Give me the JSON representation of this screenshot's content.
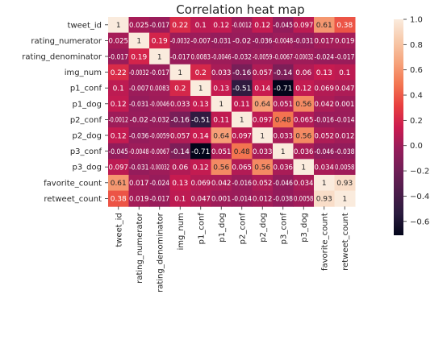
{
  "chart_data": {
    "type": "heatmap",
    "title": "Correlation heat map",
    "variables": [
      "tweet_id",
      "rating_numerator",
      "rating_denominator",
      "img_num",
      "p1_conf",
      "p1_dog",
      "p2_conf",
      "p2_dog",
      "p3_conf",
      "p3_dog",
      "favorite_count",
      "retweet_count"
    ],
    "cell_labels": [
      [
        "1",
        "0.025",
        "-0.017",
        "0.22",
        "0.1",
        "0.12",
        "-0.0012",
        "0.12",
        "-0.045",
        "0.097",
        "0.61",
        "0.38"
      ],
      [
        "0.025",
        "1",
        "0.19",
        "-0.0032",
        "-0.007",
        "-0.031",
        "-0.02",
        "-0.036",
        "-0.0048",
        "-0.031",
        "0.017",
        "0.019"
      ],
      [
        "-0.017",
        "0.19",
        "1",
        "-0.017",
        "0.0083",
        "-0.0046",
        "-0.032",
        "-0.0059",
        "-0.0067",
        "-0.00032",
        "-0.024",
        "-0.017"
      ],
      [
        "0.22",
        "-0.0032",
        "-0.017",
        "1",
        "0.2",
        "0.033",
        "-0.16",
        "0.057",
        "-0.14",
        "0.06",
        "0.13",
        "0.1"
      ],
      [
        "0.1",
        "-0.007",
        "0.0083",
        "0.2",
        "1",
        "0.13",
        "-0.51",
        "0.14",
        "-0.71",
        "0.12",
        "0.069",
        "0.047"
      ],
      [
        "0.12",
        "-0.031",
        "-0.0046",
        "0.033",
        "0.13",
        "1",
        "0.11",
        "0.64",
        "0.051",
        "0.56",
        "0.042",
        "0.001"
      ],
      [
        "-0.0012",
        "-0.02",
        "-0.032",
        "-0.16",
        "-0.51",
        "0.11",
        "1",
        "0.097",
        "0.48",
        "0.065",
        "-0.016",
        "-0.014"
      ],
      [
        "0.12",
        "-0.036",
        "-0.0059",
        "0.057",
        "0.14",
        "0.64",
        "0.097",
        "1",
        "0.033",
        "0.56",
        "0.052",
        "0.012"
      ],
      [
        "-0.045",
        "-0.0048",
        "-0.0067",
        "-0.14",
        "-0.71",
        "0.051",
        "0.48",
        "0.033",
        "1",
        "0.036",
        "-0.046",
        "-0.038"
      ],
      [
        "0.097",
        "-0.031",
        "-0.00032",
        "0.06",
        "0.12",
        "0.56",
        "0.065",
        "0.56",
        "0.036",
        "1",
        "0.034",
        "0.0058"
      ],
      [
        "0.61",
        "0.017",
        "-0.024",
        "0.13",
        "0.069",
        "0.042",
        "-0.016",
        "0.052",
        "-0.046",
        "0.034",
        "1",
        "0.93"
      ],
      [
        "0.38",
        "0.019",
        "-0.017",
        "0.1",
        "0.047",
        "0.001",
        "-0.014",
        "0.012",
        "-0.038",
        "0.0058",
        "0.93",
        "1"
      ]
    ],
    "values": [
      [
        1,
        0.025,
        -0.017,
        0.22,
        0.1,
        0.12,
        -0.0012,
        0.12,
        -0.045,
        0.097,
        0.61,
        0.38
      ],
      [
        0.025,
        1,
        0.19,
        -0.0032,
        -0.007,
        -0.031,
        -0.02,
        -0.036,
        -0.0048,
        -0.031,
        0.017,
        0.019
      ],
      [
        -0.017,
        0.19,
        1,
        -0.017,
        0.0083,
        -0.0046,
        -0.032,
        -0.0059,
        -0.0067,
        -0.00032,
        -0.024,
        -0.017
      ],
      [
        0.22,
        -0.0032,
        -0.017,
        1,
        0.2,
        0.033,
        -0.16,
        0.057,
        -0.14,
        0.06,
        0.13,
        0.1
      ],
      [
        0.1,
        -0.007,
        0.0083,
        0.2,
        1,
        0.13,
        -0.51,
        0.14,
        -0.71,
        0.12,
        0.069,
        0.047
      ],
      [
        0.12,
        -0.031,
        -0.0046,
        0.033,
        0.13,
        1,
        0.11,
        0.64,
        0.051,
        0.56,
        0.042,
        0.001
      ],
      [
        -0.0012,
        -0.02,
        -0.032,
        -0.16,
        -0.51,
        0.11,
        1,
        0.097,
        0.48,
        0.065,
        -0.016,
        -0.014
      ],
      [
        0.12,
        -0.036,
        -0.0059,
        0.057,
        0.14,
        0.64,
        0.097,
        1,
        0.033,
        0.56,
        0.052,
        0.012
      ],
      [
        -0.045,
        -0.0048,
        -0.0067,
        -0.14,
        -0.71,
        0.051,
        0.48,
        0.033,
        1,
        0.036,
        -0.046,
        -0.038
      ],
      [
        0.097,
        -0.031,
        -0.00032,
        0.06,
        0.12,
        0.56,
        0.065,
        0.56,
        0.036,
        1,
        0.034,
        0.0058
      ],
      [
        0.61,
        0.017,
        -0.024,
        0.13,
        0.069,
        0.042,
        -0.016,
        0.052,
        -0.046,
        0.034,
        1,
        0.93
      ],
      [
        0.38,
        0.019,
        -0.017,
        0.1,
        0.047,
        0.001,
        -0.014,
        0.012,
        -0.038,
        0.0058,
        0.93,
        1
      ]
    ],
    "colorbar": {
      "min": -0.71,
      "max": 1.0,
      "ticks": [
        "1.0",
        "0.8",
        "0.6",
        "0.4",
        "0.2",
        "0.0",
        "−0.2",
        "−0.4",
        "−0.6"
      ],
      "tick_values": [
        1.0,
        0.8,
        0.6,
        0.4,
        0.2,
        0.0,
        -0.2,
        -0.4,
        -0.6
      ],
      "colormap": "rocket",
      "colors": [
        "#03051a",
        "#2a1b3e",
        "#4c1d4b",
        "#701f57",
        "#961c5b",
        "#cb1b4f",
        "#e83f3f",
        "#f37651",
        "#f6a47c",
        "#f7c9aa",
        "#faebdd"
      ]
    },
    "xlabel": "",
    "ylabel": ""
  }
}
